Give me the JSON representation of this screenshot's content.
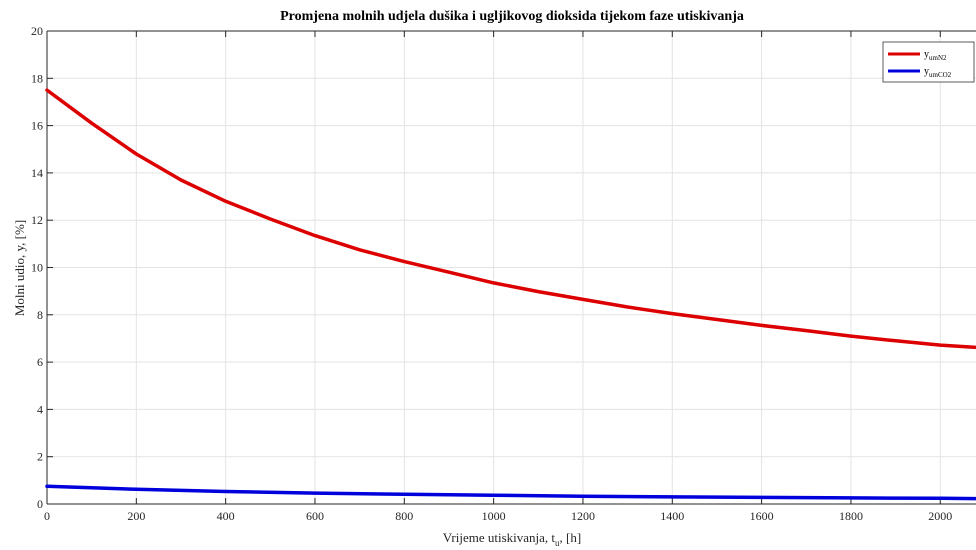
{
  "chart_data": {
    "type": "line",
    "title": "Promjena molnih udjela dušika i ugljikovog dioksida tijekom faze utiskivanja",
    "xlabel": "Vrijeme utiskivanja, t",
    "xlabel_sub": "u",
    "xlabel_suffix": ", [h]",
    "ylabel": "Molni udio, y, [%]",
    "xlim": [
      0,
      2080
    ],
    "ylim": [
      0,
      20
    ],
    "xticks": [
      0,
      200,
      400,
      600,
      800,
      1000,
      1200,
      1400,
      1600,
      1800,
      2000
    ],
    "yticks": [
      0,
      2,
      4,
      6,
      8,
      10,
      12,
      14,
      16,
      18,
      20
    ],
    "grid": true,
    "legend_position": "top-right",
    "series": [
      {
        "name": "y",
        "name_sub": "umN2",
        "color": "#dd0000",
        "x": [
          0,
          100,
          200,
          300,
          400,
          500,
          600,
          700,
          800,
          900,
          1000,
          1100,
          1200,
          1300,
          1400,
          1500,
          1600,
          1700,
          1800,
          1900,
          2000,
          2080
        ],
        "y": [
          17.5,
          16.1,
          14.8,
          13.7,
          12.8,
          12.05,
          11.35,
          10.75,
          10.25,
          9.8,
          9.35,
          8.98,
          8.65,
          8.33,
          8.05,
          7.8,
          7.55,
          7.33,
          7.1,
          6.9,
          6.72,
          6.62
        ]
      },
      {
        "name": "y",
        "name_sub": "umCO2",
        "color": "#0000dd",
        "x": [
          0,
          200,
          400,
          600,
          800,
          1000,
          1200,
          1400,
          1600,
          1800,
          2000,
          2080
        ],
        "y": [
          0.75,
          0.62,
          0.53,
          0.46,
          0.41,
          0.37,
          0.33,
          0.3,
          0.28,
          0.26,
          0.24,
          0.23
        ]
      }
    ]
  }
}
